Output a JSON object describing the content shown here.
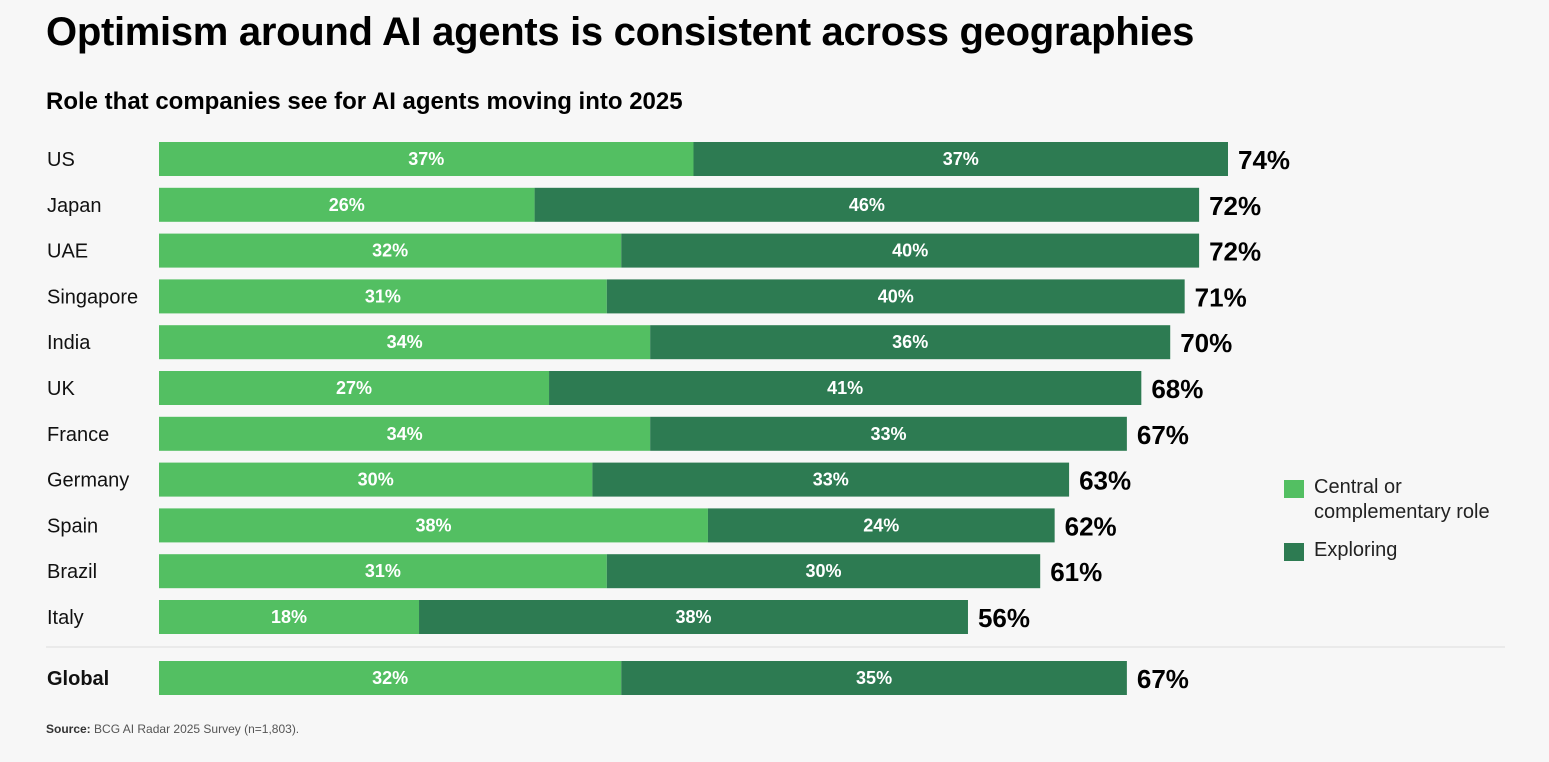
{
  "title": "Optimism around AI agents is consistent across geographies",
  "subtitle": "Role that companies see for AI agents moving into 2025",
  "legend": {
    "central": "Central or complementary role",
    "exploring": "Exploring"
  },
  "source": {
    "label": "Source:",
    "text": "BCG AI Radar 2025 Survey (n=1,803)."
  },
  "colors": {
    "central": "#53bf62",
    "exploring": "#2d7b52",
    "separator": "#dddddd"
  },
  "chart_data": {
    "type": "bar",
    "orientation": "horizontal",
    "stacked": true,
    "title": "Role that companies see for AI agents moving into 2025",
    "categories": [
      "US",
      "Japan",
      "UAE",
      "Singapore",
      "India",
      "UK",
      "France",
      "Germany",
      "Spain",
      "Brazil",
      "Italy",
      "Global"
    ],
    "series": [
      {
        "name": "Central or complementary role",
        "values": [
          37,
          26,
          32,
          31,
          34,
          27,
          34,
          30,
          38,
          31,
          18,
          32
        ]
      },
      {
        "name": "Exploring",
        "values": [
          37,
          46,
          40,
          40,
          36,
          41,
          33,
          33,
          24,
          30,
          38,
          35
        ]
      }
    ],
    "totals": [
      74,
      72,
      72,
      71,
      70,
      68,
      67,
      63,
      62,
      61,
      56,
      67
    ],
    "value_suffix": "%",
    "xlim": [
      0,
      74
    ],
    "legend_position": "right"
  }
}
